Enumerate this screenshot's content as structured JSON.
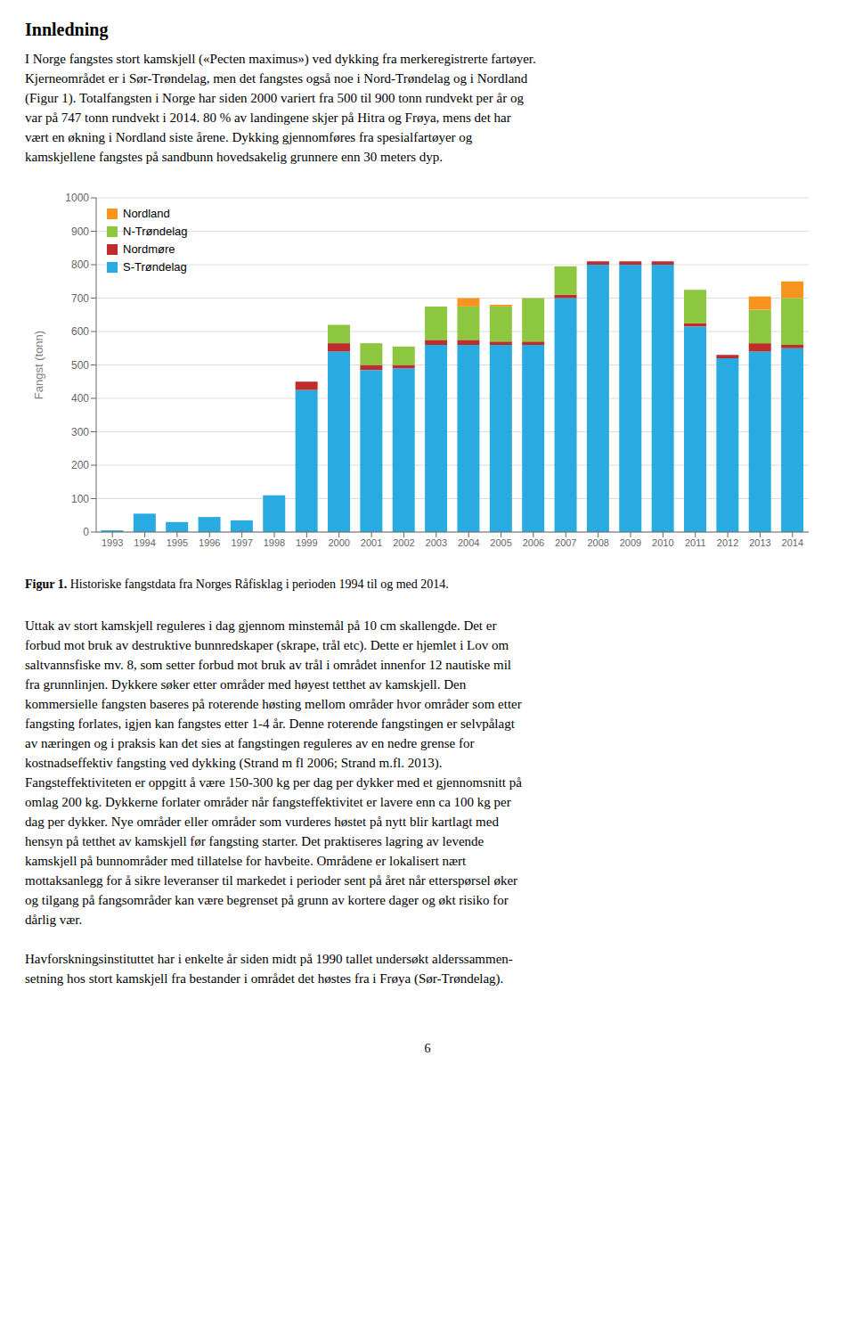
{
  "chart_data": {
    "type": "bar",
    "stacked": true,
    "categories": [
      "1993",
      "1994",
      "1995",
      "1996",
      "1997",
      "1998",
      "1999",
      "2000",
      "2001",
      "2002",
      "2003",
      "2004",
      "2005",
      "2006",
      "2007",
      "2008",
      "2009",
      "2010",
      "2011",
      "2012",
      "2013",
      "2014"
    ],
    "series": [
      {
        "name": "S-Trøndelag",
        "color": "#29ABE2",
        "values": [
          5,
          55,
          30,
          45,
          35,
          110,
          425,
          540,
          485,
          490,
          560,
          560,
          560,
          560,
          700,
          800,
          800,
          800,
          615,
          520,
          540,
          550
        ]
      },
      {
        "name": "Nordmøre",
        "color": "#BE2D2C",
        "values": [
          0,
          0,
          0,
          0,
          0,
          0,
          25,
          25,
          15,
          10,
          15,
          15,
          10,
          10,
          10,
          10,
          10,
          10,
          10,
          10,
          25,
          10
        ]
      },
      {
        "name": "N-Trøndelag",
        "color": "#8DC63F",
        "values": [
          0,
          0,
          0,
          0,
          0,
          0,
          0,
          55,
          65,
          55,
          100,
          100,
          105,
          130,
          85,
          0,
          0,
          0,
          100,
          0,
          100,
          140
        ]
      },
      {
        "name": "Nordland",
        "color": "#F7941D",
        "values": [
          0,
          0,
          0,
          0,
          0,
          0,
          0,
          0,
          0,
          0,
          0,
          25,
          5,
          0,
          0,
          0,
          0,
          0,
          0,
          0,
          40,
          50
        ]
      }
    ],
    "ylabel": "Fangst (tonn)",
    "ylim": [
      0,
      1000
    ],
    "yticks": [
      0,
      100,
      200,
      300,
      400,
      500,
      600,
      700,
      800,
      900,
      1000
    ],
    "grid": true,
    "legend": "upper left",
    "annotations": [
      "Innledning",
      "I Norge fangstes stort kamskjell («Pecten maximus») ved dykking fra merkeregistrerte fartøyer.\nKjerneområdet er i Sør-Trøndelag, men det fangstes også noe i Nord-Trøndelag og i Nordland\n(Figur 1). Totalfangsten i Norge har siden 2000 variert fra 500 til 900 tonn rundvekt per år og\nvar på 747 tonn rundvekt i 2014. 80 % av landingene skjer på Hitra og Frøya, mens det har\nvært en økning i Nordland siste årene. Dykking gjennomføres fra spesialfartøyer og\nkamskjellene fangstes på sandbunn hovedsakelig grunnere enn 30 meters dyp.",
      "Figur 1. Historiske fangstdata fra Norges Råfisklag i perioden 1994 til og med 2014.",
      "Uttak av stort kamskjell reguleres i dag gjennom minstemål på 10 cm skallengde. Det er\nforbud mot bruk av destruktive bunnredskaper (skrape, trål etc). Dette er hjemlet i Lov om\nsaltvannsfiske mv. 8, som setter forbud mot bruk av trål i området innenfor 12 nautiske mil\nfra grunnlinjen. Dykkere søker etter områder med høyest tetthet av kamskjell. Den\nkommersielle fangsten baseres på roterende høsting mellom områder hvor områder som etter\nfangsting forlates, igjen kan fangstes etter 1-4 år. Denne roterende fangstingen er selvpålagt\nav næringen og i praksis kan det sies at fangstingen reguleres av en nedre grense for\nkostnadseffektiv fangsting ved dykking (Strand m fl 2006; Strand m.fl. 2013).\nFangsteffektiviteten er oppgitt å være 150-300 kg per dag per dykker med et gjennomsnitt på\nomlag 200 kg. Dykkerne forlater områder når fangsteffektivitet er lavere enn ca 100 kg per\ndag per dykker. Nye områder eller områder som vurderes høstet på nytt blir kartlagt med\nhensyn på tetthet av kamskjell før fangsting starter. Det praktiseres lagring av levende\nkamskjell på bunnområder med tillatelse for havbeite. Områdene er lokalisert nært\nmottaksanlegg for å sikre leveranser til markedet i perioder sent på året når etterspørsel øker\nog tilgang på fangsområder kan være begrenset på grunn av kortere dager og økt risiko for\ndårlig vær.",
      "Havforskningsinstituttet har i enkelte år siden midt på 1990 tallet undersøkt alderssammen-\nsetning hos stort kamskjell fra bestander i området det høstes fra i Frøya (Sør-Trøndelag).",
      "6"
    ]
  }
}
